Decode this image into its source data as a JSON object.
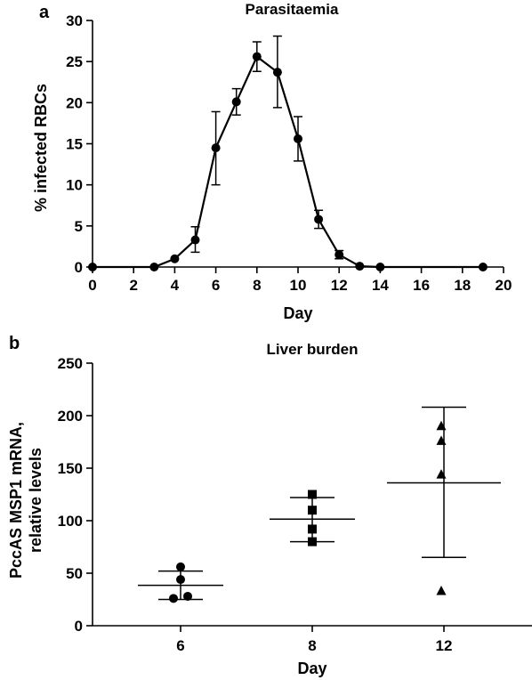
{
  "chart_data": [
    {
      "panel": "a",
      "type": "line",
      "title": "Parasitaemia",
      "xlabel": "Day",
      "ylabel": "% infected RBCs",
      "xlim": [
        0,
        20
      ],
      "ylim": [
        0,
        30
      ],
      "xticks": [
        0,
        2,
        4,
        6,
        8,
        10,
        12,
        14,
        16,
        18,
        20
      ],
      "yticks": [
        0,
        5,
        10,
        15,
        20,
        25,
        30
      ],
      "grid": false,
      "series": [
        {
          "marker": "circle",
          "color": "#000000",
          "points": [
            {
              "x": 0,
              "y": 0,
              "err_low": 0,
              "err_high": 0
            },
            {
              "x": 3,
              "y": 0,
              "err_low": 0,
              "err_high": 0
            },
            {
              "x": 4,
              "y": 1.0,
              "err_low": 1.0,
              "err_high": 1.0
            },
            {
              "x": 5,
              "y": 3.3,
              "err_low": 1.8,
              "err_high": 4.9
            },
            {
              "x": 6,
              "y": 14.5,
              "err_low": 10.0,
              "err_high": 18.9
            },
            {
              "x": 7,
              "y": 20.1,
              "err_low": 18.5,
              "err_high": 21.7
            },
            {
              "x": 8,
              "y": 25.6,
              "err_low": 23.8,
              "err_high": 27.4
            },
            {
              "x": 9,
              "y": 23.7,
              "err_low": 19.4,
              "err_high": 28.1
            },
            {
              "x": 10,
              "y": 15.6,
              "err_low": 12.9,
              "err_high": 18.3
            },
            {
              "x": 11,
              "y": 5.8,
              "err_low": 4.7,
              "err_high": 6.9
            },
            {
              "x": 12,
              "y": 1.5,
              "err_low": 1.0,
              "err_high": 2.0
            },
            {
              "x": 13,
              "y": 0.1,
              "err_low": 0.1,
              "err_high": 0.1
            },
            {
              "x": 14,
              "y": 0,
              "err_low": 0,
              "err_high": 0
            },
            {
              "x": 19,
              "y": 0,
              "err_low": 0,
              "err_high": 0
            }
          ]
        }
      ]
    },
    {
      "panel": "b",
      "type": "scatter",
      "title": "Liver burden",
      "xlabel": "Day",
      "ylabel": [
        "PccAS MSP1 mRNA,",
        "relative levels"
      ],
      "ylim": [
        0,
        250
      ],
      "yticks": [
        0,
        50,
        100,
        150,
        200,
        250
      ],
      "grid": false,
      "categories": [
        "6",
        "8",
        "12"
      ],
      "groups": [
        {
          "category": "6",
          "marker": "circle",
          "points": [
            56,
            44,
            28,
            26
          ],
          "mean": 38.5,
          "sd_low": 25,
          "sd_high": 52
        },
        {
          "category": "8",
          "marker": "square",
          "points": [
            125,
            110,
            92,
            80
          ],
          "mean": 101.5,
          "sd_low": 80,
          "sd_high": 122
        },
        {
          "category": "12",
          "marker": "triangle",
          "points": [
            190,
            176,
            144,
            33
          ],
          "mean": 136,
          "sd_low": 65,
          "sd_high": 208
        }
      ]
    }
  ]
}
